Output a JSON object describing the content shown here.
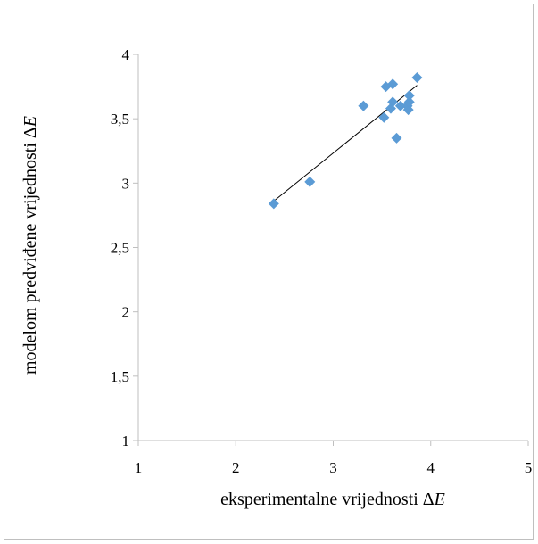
{
  "chart_data": {
    "type": "scatter",
    "title": "",
    "xlabel": "eksperimentalne vrijednosti ΔE",
    "ylabel": "modelom predviđene vrijednosti ΔE",
    "xlabel_prefix": "eksperimentalne vrijednosti Δ",
    "ylabel_prefix": "modelom predviđene vrijednosti Δ",
    "axis_symbol": "E",
    "xlim": [
      1,
      5
    ],
    "ylim": [
      1,
      4
    ],
    "x_ticks": [
      1,
      2,
      3,
      4,
      5
    ],
    "y_ticks": [
      1,
      1.5,
      2,
      2.5,
      3,
      3.5,
      4
    ],
    "x_tick_labels": [
      "1",
      "2",
      "3",
      "4",
      "5"
    ],
    "y_tick_labels": [
      "1",
      "1,5",
      "2",
      "2,5",
      "3",
      "3,5",
      "4"
    ],
    "grid": false,
    "marker": "diamond",
    "marker_color": "#5B9BD5",
    "trendline_color": "#000000",
    "series": [
      {
        "points": [
          {
            "x": 2.39,
            "y": 2.84
          },
          {
            "x": 2.76,
            "y": 3.01
          },
          {
            "x": 3.31,
            "y": 3.6
          },
          {
            "x": 3.52,
            "y": 3.51
          },
          {
            "x": 3.54,
            "y": 3.75
          },
          {
            "x": 3.59,
            "y": 3.58
          },
          {
            "x": 3.61,
            "y": 3.63
          },
          {
            "x": 3.61,
            "y": 3.77
          },
          {
            "x": 3.65,
            "y": 3.35
          },
          {
            "x": 3.69,
            "y": 3.6
          },
          {
            "x": 3.76,
            "y": 3.6
          },
          {
            "x": 3.77,
            "y": 3.57
          },
          {
            "x": 3.78,
            "y": 3.63
          },
          {
            "x": 3.78,
            "y": 3.68
          },
          {
            "x": 3.86,
            "y": 3.82
          }
        ]
      }
    ],
    "trendline": {
      "x": [
        2.39,
        3.86
      ],
      "y": [
        2.86,
        3.76
      ]
    }
  }
}
